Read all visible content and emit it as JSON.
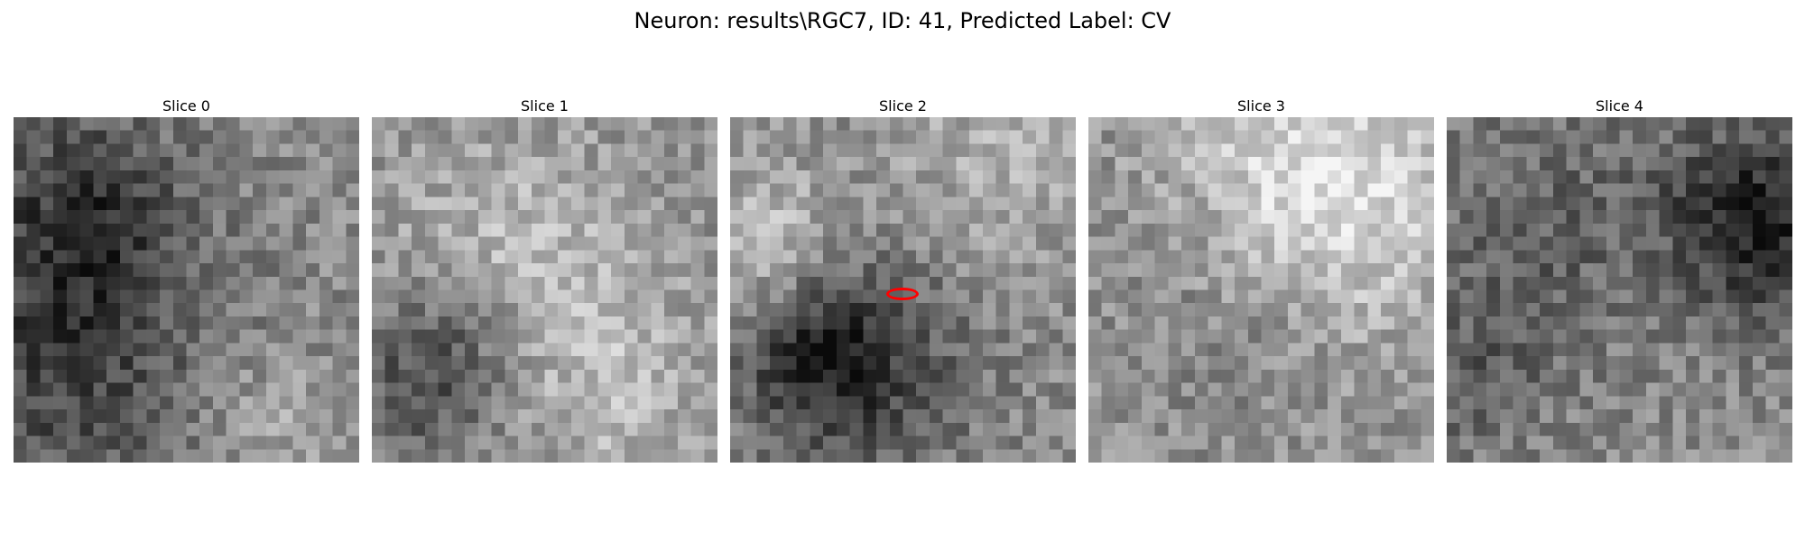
{
  "figure": {
    "title": "Neuron: results\\RGC7, ID: 41, Predicted Label: CV",
    "colormap": "gray",
    "marker_color": "#ff0000"
  },
  "panels": [
    {
      "title": "Slice 0",
      "seed": 11,
      "grid": 26
    },
    {
      "title": "Slice 1",
      "seed": 23,
      "grid": 26
    },
    {
      "title": "Slice 2",
      "seed": 37,
      "grid": 26,
      "marker": true
    },
    {
      "title": "Slice 3",
      "seed": 51,
      "grid": 26
    },
    {
      "title": "Slice 4",
      "seed": 67,
      "grid": 26
    }
  ]
}
